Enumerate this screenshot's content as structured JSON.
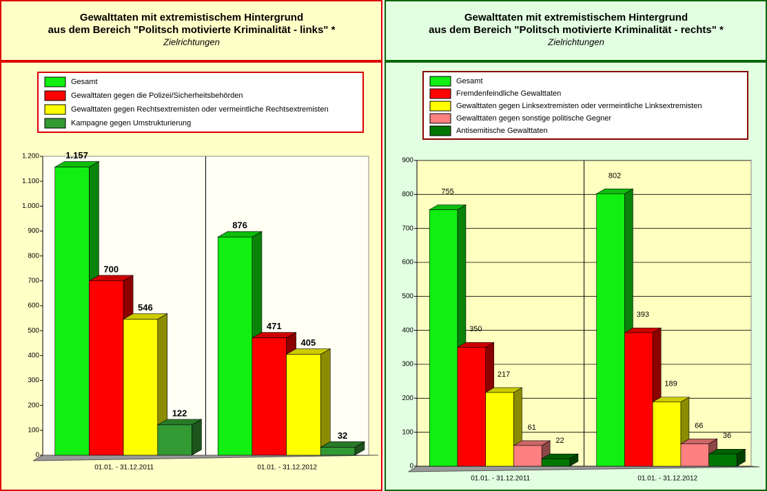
{
  "chart_data": [
    {
      "type": "bar3d",
      "title": [
        "Gewalttaten mit extremistischem Hintergrund",
        "aus dem Bereich \"Politsch motivierte Kriminalität - links\" *"
      ],
      "subtitle": "Zielrichtungen",
      "categories": [
        "01.01. - 31.12.2011",
        "01.01. - 31.12.2012"
      ],
      "series": [
        {
          "name": "Gesamt",
          "color": "#11ee11",
          "values": [
            1157,
            876
          ],
          "value_labels": [
            "1.157",
            "876"
          ]
        },
        {
          "name": "Gewalttaten gegen die Polizei/Sicherheitsbehörden",
          "color": "#ff0000",
          "values": [
            700,
            471
          ]
        },
        {
          "name": "Gewalttaten gegen Rechtsextremisten oder vermeintliche Rechtsextremisten",
          "color": "#ffff00",
          "values": [
            546,
            405
          ]
        },
        {
          "name": "Kampagne gegen Umstrukturierung",
          "color": "#339933",
          "values": [
            122,
            32
          ]
        }
      ],
      "ylim": [
        0,
        1200
      ],
      "yticks": [
        0,
        100,
        200,
        300,
        400,
        500,
        600,
        700,
        800,
        900,
        {
          "value": 1000,
          "label": "1.000"
        },
        {
          "value": 1100,
          "label": "1.100"
        },
        {
          "value": 1200,
          "label": "1.200"
        }
      ],
      "grid": false
    },
    {
      "type": "bar3d",
      "title": [
        "Gewalttaten mit extremistischem Hintergrund",
        "aus dem Bereich \"Politsch motivierte Kriminalität - rechts\" *"
      ],
      "subtitle": "Zielrichtungen",
      "categories": [
        "01.01. - 31.12.2011",
        "01.01. - 31.12.2012"
      ],
      "series": [
        {
          "name": "Gesamt",
          "color": "#11ee11",
          "values": [
            755,
            802
          ]
        },
        {
          "name": "Fremdenfeindliche Gewalttaten",
          "color": "#ff0000",
          "values": [
            350,
            393
          ]
        },
        {
          "name": "Gewalttaten gegen Linksextremisten oder vermeintliche Linksextremisten",
          "color": "#ffff00",
          "values": [
            217,
            189
          ]
        },
        {
          "name": "Gewalttaten gegen sonstige politische Gegner",
          "color": "#ff8080",
          "values": [
            61,
            66
          ]
        },
        {
          "name": "Antisemitische Gewalttaten",
          "color": "#007700",
          "values": [
            22,
            36
          ]
        }
      ],
      "ylim": [
        0,
        900
      ],
      "yticks": [
        0,
        100,
        200,
        300,
        400,
        500,
        600,
        700,
        800,
        900
      ],
      "grid": true
    }
  ]
}
